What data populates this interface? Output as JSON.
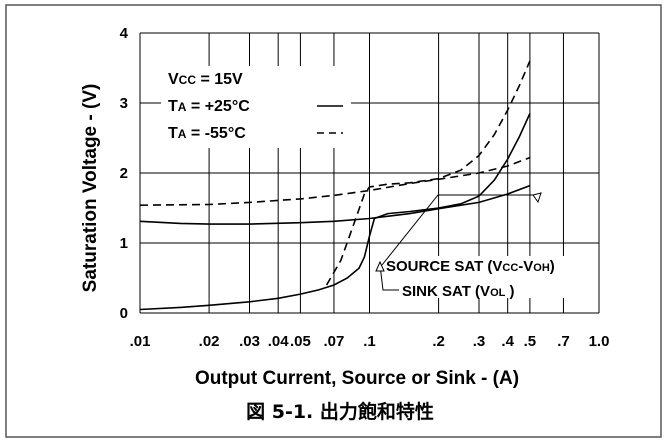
{
  "chart_data": {
    "type": "line",
    "xscale": "log",
    "xlim": [
      0.01,
      1.0
    ],
    "ylim": [
      0,
      4
    ],
    "grid": true,
    "xlabel": "Output Current, Source or Sink - (A)",
    "ylabel": "Saturation Voltage - (V)",
    "xticks": [
      {
        "v": 0.01,
        "label": ".01"
      },
      {
        "v": 0.02,
        "label": ".02"
      },
      {
        "v": 0.03,
        "label": ".03"
      },
      {
        "v": 0.04,
        "label": ".04"
      },
      {
        "v": 0.05,
        "label": ".05"
      },
      {
        "v": 0.07,
        "label": ".07"
      },
      {
        "v": 0.1,
        "label": ".1"
      },
      {
        "v": 0.2,
        "label": ".2"
      },
      {
        "v": 0.3,
        "label": ".3"
      },
      {
        "v": 0.4,
        "label": ".4"
      },
      {
        "v": 0.5,
        "label": ".5"
      },
      {
        "v": 0.7,
        "label": ".7"
      },
      {
        "v": 1.0,
        "label": "1.0"
      }
    ],
    "yticks": [
      {
        "v": 0,
        "label": "0"
      },
      {
        "v": 1,
        "label": "1"
      },
      {
        "v": 2,
        "label": "2"
      },
      {
        "v": 3,
        "label": "3"
      },
      {
        "v": 4,
        "label": "4"
      }
    ],
    "legend": {
      "vcc": "Vcc = 15V",
      "ta_solid": "TA = +25°C",
      "ta_dashed": "TA = -55°C"
    },
    "annotations": {
      "source": "SOURCE SAT (Vcc-VOH)",
      "sink": "SINK SAT (VOL )"
    },
    "series": [
      {
        "style": "solid",
        "curve": "source",
        "x": [
          0.01,
          0.015,
          0.02,
          0.03,
          0.05,
          0.07,
          0.1,
          0.15,
          0.2,
          0.3,
          0.4,
          0.5
        ],
        "y": [
          1.31,
          1.28,
          1.27,
          1.27,
          1.29,
          1.31,
          1.35,
          1.42,
          1.49,
          1.58,
          1.7,
          1.82
        ]
      },
      {
        "style": "dashed",
        "curve": "source",
        "x": [
          0.01,
          0.02,
          0.03,
          0.05,
          0.07,
          0.1,
          0.15,
          0.2,
          0.3,
          0.4,
          0.5
        ],
        "y": [
          1.54,
          1.55,
          1.58,
          1.63,
          1.68,
          1.75,
          1.85,
          1.91,
          2.0,
          2.1,
          2.22
        ]
      },
      {
        "style": "solid",
        "curve": "sink",
        "x": [
          0.01,
          0.015,
          0.02,
          0.03,
          0.04,
          0.05,
          0.06,
          0.07,
          0.08,
          0.09,
          0.095,
          0.1,
          0.105,
          0.12,
          0.15,
          0.2,
          0.25,
          0.3,
          0.35,
          0.4,
          0.45,
          0.5
        ],
        "y": [
          0.05,
          0.08,
          0.11,
          0.16,
          0.21,
          0.27,
          0.33,
          0.4,
          0.5,
          0.64,
          0.8,
          1.1,
          1.35,
          1.42,
          1.45,
          1.5,
          1.56,
          1.67,
          1.9,
          2.2,
          2.52,
          2.85
        ]
      },
      {
        "style": "dashed",
        "curve": "sink",
        "x": [
          0.065,
          0.075,
          0.085,
          0.095,
          0.1,
          0.12,
          0.15,
          0.2,
          0.25,
          0.3,
          0.35,
          0.4,
          0.45,
          0.5
        ],
        "y": [
          0.4,
          0.75,
          1.25,
          1.7,
          1.8,
          1.84,
          1.86,
          1.92,
          2.04,
          2.25,
          2.55,
          2.9,
          3.25,
          3.6
        ]
      }
    ]
  },
  "caption": "図 5-1. 出力飽和特性"
}
